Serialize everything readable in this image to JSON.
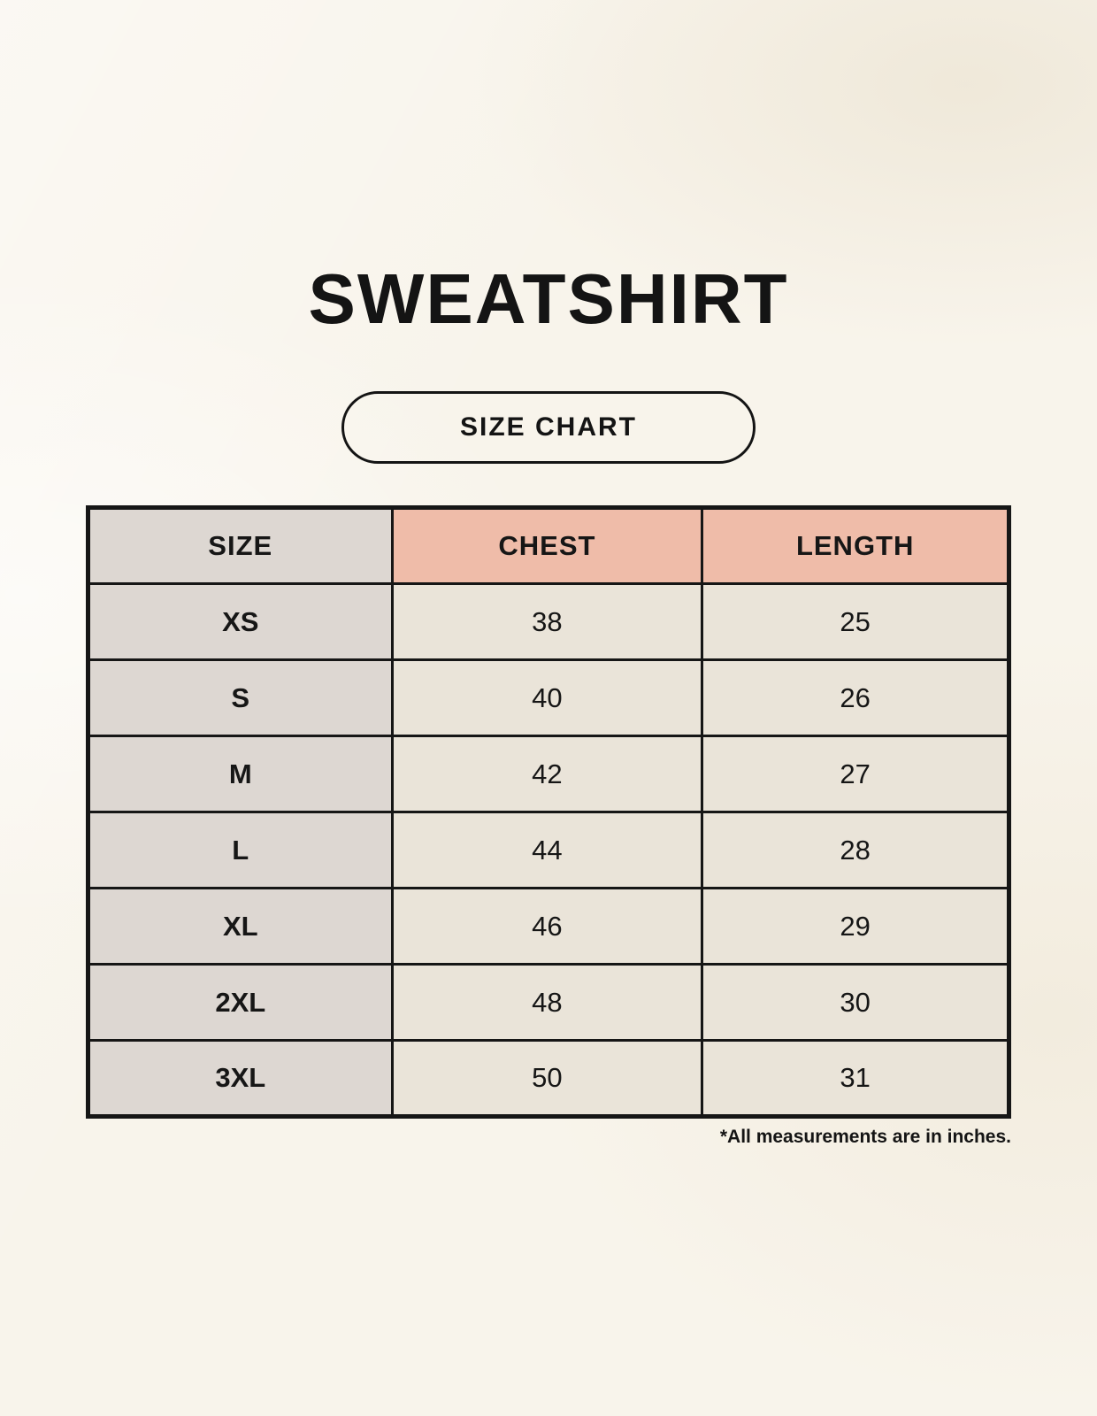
{
  "page": {
    "title": "SWEATSHIRT",
    "size_chart_button_label": "SIZE CHART",
    "footnote": "*All measurements are in inches."
  },
  "colors": {
    "background": "#f8f4eb",
    "size_column_bg": "#ddd7d2",
    "measure_header_bg": "#efbca9",
    "value_cell_bg": "#eae4d9",
    "border_and_text": "#161616"
  },
  "table": {
    "headers": [
      "SIZE",
      "CHEST",
      "LENGTH"
    ],
    "rows": [
      {
        "size": "XS",
        "chest": "38",
        "length": "25"
      },
      {
        "size": "S",
        "chest": "40",
        "length": "26"
      },
      {
        "size": "M",
        "chest": "42",
        "length": "27"
      },
      {
        "size": "L",
        "chest": "44",
        "length": "28"
      },
      {
        "size": "XL",
        "chest": "46",
        "length": "29"
      },
      {
        "size": "2XL",
        "chest": "48",
        "length": "30"
      },
      {
        "size": "3XL",
        "chest": "50",
        "length": "31"
      }
    ]
  },
  "chart_data": {
    "type": "table",
    "title": "SWEATSHIRT",
    "subtitle": "SIZE CHART",
    "columns": [
      "SIZE",
      "CHEST",
      "LENGTH"
    ],
    "rows": [
      [
        "XS",
        38,
        25
      ],
      [
        "S",
        40,
        26
      ],
      [
        "M",
        42,
        27
      ],
      [
        "L",
        44,
        28
      ],
      [
        "XL",
        46,
        29
      ],
      [
        "2XL",
        48,
        30
      ],
      [
        "3XL",
        50,
        31
      ]
    ],
    "units": "inches",
    "note": "*All measurements are in inches."
  }
}
